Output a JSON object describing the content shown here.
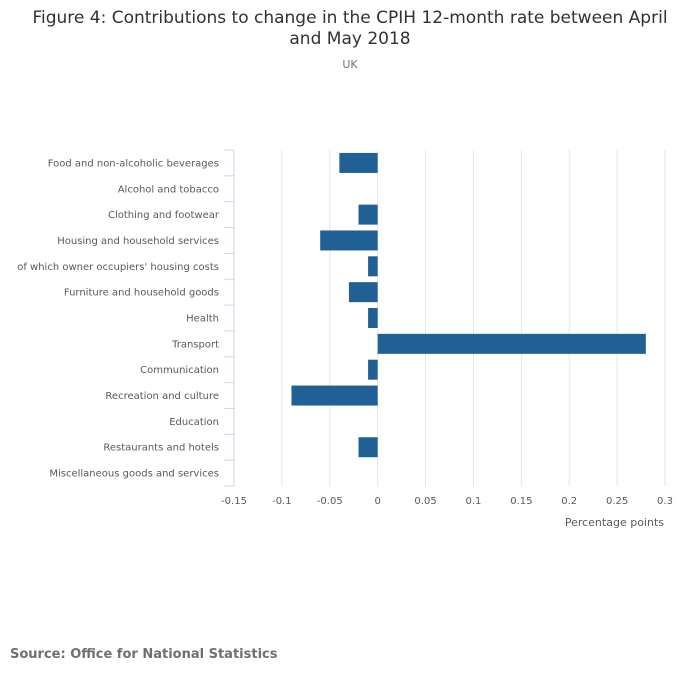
{
  "title_line1": "Figure 4: Contributions to change in the CPIH 12-month rate between April",
  "title_line2": "and May 2018",
  "subtitle": "UK",
  "source": "Source: Office for National Statistics",
  "chart_data": {
    "type": "bar",
    "orientation": "horizontal",
    "categories": [
      "Food and non-alcoholic beverages",
      "Alcohol and tobacco",
      "Clothing and footwear",
      "Housing and household services",
      "of which owner occupiers' housing costs",
      "Furniture and household goods",
      "Health",
      "Transport",
      "Communication",
      "Recreation and culture",
      "Education",
      "Restaurants and hotels",
      "Miscellaneous goods and services"
    ],
    "values": [
      -0.04,
      0,
      -0.02,
      -0.06,
      -0.01,
      -0.03,
      -0.01,
      0.28,
      -0.01,
      -0.09,
      0,
      -0.02,
      0
    ],
    "xlim": [
      -0.15,
      0.3
    ],
    "xticks": [
      -0.15,
      -0.1,
      -0.05,
      0,
      0.05,
      0.1,
      0.15,
      0.2,
      0.25,
      0.3
    ],
    "xtick_labels": [
      "-0.15",
      "-0.1",
      "-0.05",
      "0",
      "0.05",
      "0.1",
      "0.15",
      "0.2",
      "0.25",
      "0.3"
    ],
    "xlabel": "Percentage points",
    "ylabel": "",
    "bar_color": "#206095",
    "grid": true
  }
}
